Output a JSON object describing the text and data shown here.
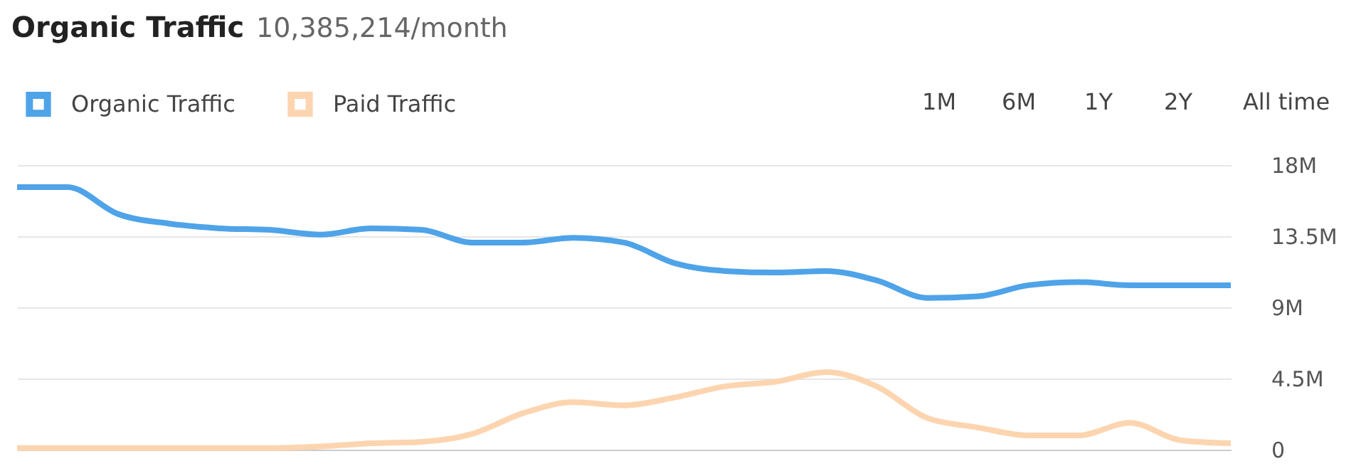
{
  "chart_data": {
    "type": "line",
    "title": "Organic Traffic",
    "subtitle": "10,385,214/month",
    "annotations": [
      "1M",
      "6M",
      "1Y",
      "2Y",
      "All time"
    ],
    "categories": [
      null,
      null,
      null,
      null,
      null,
      null,
      null,
      null,
      null,
      null,
      null,
      null,
      null,
      null,
      null,
      null,
      null,
      null,
      null,
      null,
      null,
      null,
      null,
      null,
      null
    ],
    "series": [
      {
        "name": "Organic Traffic",
        "color": "#4fa3e8",
        "values": [
          16.6,
          16.6,
          14.9,
          14.3,
          14.0,
          13.9,
          13.6,
          14.0,
          13.9,
          13.1,
          13.1,
          13.4,
          13.1,
          11.8,
          11.3,
          11.2,
          11.3,
          10.7,
          9.6,
          9.7,
          10.4,
          10.6,
          10.4,
          10.4,
          10.4
        ]
      },
      {
        "name": "Paid Traffic",
        "color": "#fcd5b0",
        "values": [
          0.1,
          0.1,
          0.1,
          0.1,
          0.1,
          0.1,
          0.2,
          0.4,
          0.5,
          1.0,
          2.3,
          3.0,
          2.8,
          3.3,
          4.0,
          4.3,
          4.9,
          4.0,
          2.0,
          1.4,
          0.9,
          0.9,
          1.7,
          0.6,
          0.4
        ]
      }
    ],
    "ylim": [
      0,
      18
    ],
    "yticks": [
      0,
      {
        "value": 4.5,
        "label": "4.5M"
      },
      {
        "value": 9,
        "label": "9M"
      },
      {
        "value": 13.5,
        "label": "13.5M"
      },
      {
        "value": 18,
        "label": "18M"
      }
    ],
    "grid": "y",
    "legend": "top left",
    "marker": "none",
    "line_style": "solid"
  }
}
